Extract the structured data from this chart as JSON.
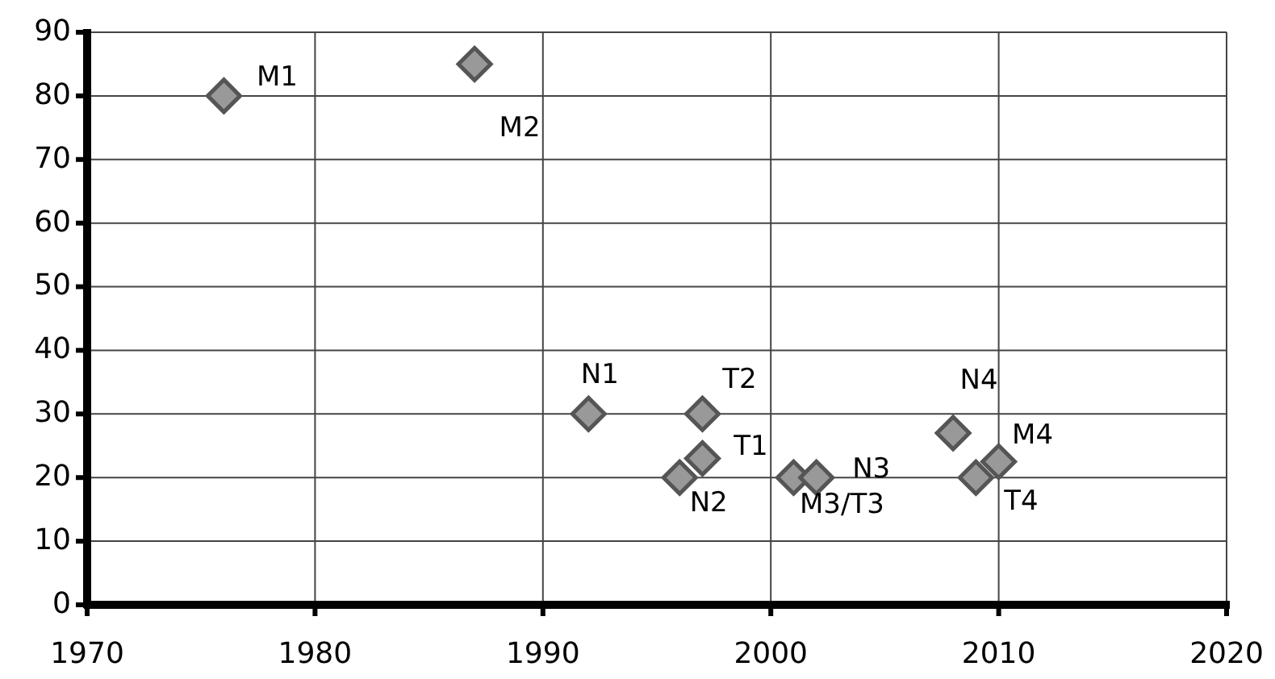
{
  "chart_data": {
    "type": "scatter",
    "x": [
      1976,
      1987,
      1992,
      1997,
      1997,
      1996,
      2001,
      2002,
      2008,
      2009,
      2010
    ],
    "values": [
      80,
      85,
      30,
      30,
      23,
      20,
      20,
      20,
      27,
      20,
      22.5
    ],
    "color": "#999999",
    "marker": "diamond",
    "grid": true,
    "xlim": [
      1970,
      2020
    ],
    "xticks": [
      1970,
      1980,
      1990,
      2000,
      2010,
      2020
    ],
    "ylim": [
      0,
      90
    ],
    "yticks": [
      0,
      10,
      20,
      30,
      40,
      50,
      60,
      70,
      80,
      90
    ],
    "annotations": [
      {
        "text": "M1",
        "x": 1976,
        "y": 80
      },
      {
        "text": "M2",
        "x": 1987,
        "y": 85
      },
      {
        "text": "N1",
        "x": 1992,
        "y": 30
      },
      {
        "text": "T2",
        "x": 1997,
        "y": 30
      },
      {
        "text": "T1",
        "x": 1997,
        "y": 23
      },
      {
        "text": "N2",
        "x": 1996,
        "y": 20
      },
      {
        "text": "M3/T3",
        "x": 2001,
        "y": 20
      },
      {
        "text": "N3",
        "x": 2002,
        "y": 20
      },
      {
        "text": "N4",
        "x": 2008,
        "y": 27
      },
      {
        "text": "T4",
        "x": 2009,
        "y": 20
      },
      {
        "text": "M4",
        "x": 2010,
        "y": 22.5
      }
    ]
  }
}
